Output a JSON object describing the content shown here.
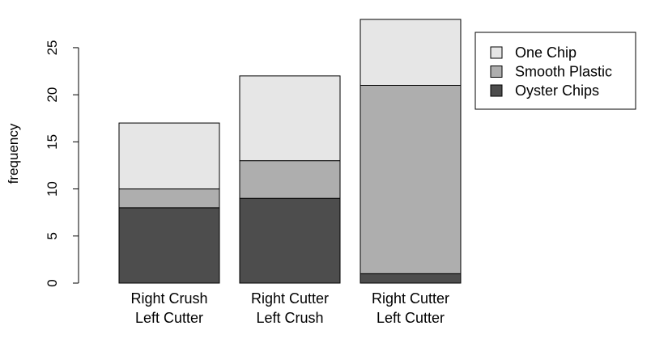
{
  "chart_data": {
    "type": "bar",
    "stacked": true,
    "categories": [
      [
        "Right Crush",
        "Left Cutter"
      ],
      [
        "Right Cutter",
        "Left Crush"
      ],
      [
        "Right Cutter",
        "Left Cutter"
      ]
    ],
    "series": [
      {
        "name": "Oyster Chips",
        "values": [
          8,
          9,
          1
        ],
        "color": "#4d4d4d"
      },
      {
        "name": "Smooth Plastic",
        "values": [
          2,
          4,
          20
        ],
        "color": "#aeaeae"
      },
      {
        "name": "One Chip",
        "values": [
          7,
          9,
          7
        ],
        "color": "#e6e6e6"
      }
    ],
    "legend_order": [
      "One Chip",
      "Smooth Plastic",
      "Oyster Chips"
    ],
    "ylabel": "frequency",
    "ylim": [
      0,
      28
    ],
    "yticks": [
      0,
      5,
      10,
      15,
      20,
      25
    ],
    "legend_position": "top-right",
    "grid": false
  }
}
